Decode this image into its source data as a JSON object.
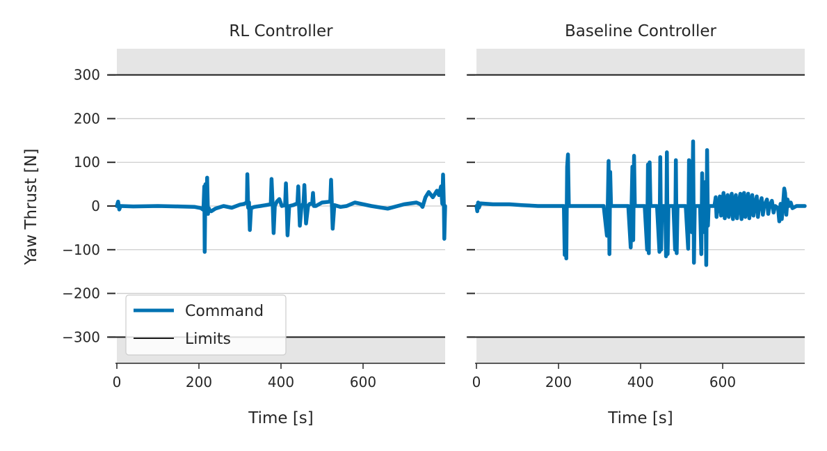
{
  "chart_data": [
    {
      "type": "line",
      "title": "RL Controller",
      "xlabel": "Time [s]",
      "ylabel": "Yaw Thrust [N]",
      "xlim": [
        0,
        800
      ],
      "ylim": [
        -360,
        360
      ],
      "xticks": [
        0,
        200,
        400,
        600
      ],
      "xtick_labels": [
        "0",
        "200",
        "400",
        "600"
      ],
      "yticks": [
        300,
        200,
        100,
        0,
        -100,
        -200,
        -300
      ],
      "ytick_labels": [
        "300",
        "200",
        "100",
        "0",
        "−100",
        "−200",
        "−300"
      ],
      "grid": true,
      "limits": [
        300,
        -300
      ],
      "legend": {
        "position": "lower-left",
        "entries": [
          "Command",
          "Limits"
        ]
      },
      "series": [
        {
          "name": "Command",
          "color": "#0072B2",
          "points": [
            [
              0,
              0
            ],
            [
              3,
              10
            ],
            [
              6,
              -8
            ],
            [
              9,
              0
            ],
            [
              40,
              -1
            ],
            [
              100,
              0
            ],
            [
              150,
              -1
            ],
            [
              190,
              -2
            ],
            [
              205,
              -5
            ],
            [
              211,
              -9
            ],
            [
              213,
              45
            ],
            [
              214,
              -105
            ],
            [
              216,
              50
            ],
            [
              218,
              -8
            ],
            [
              220,
              65
            ],
            [
              222,
              -18
            ],
            [
              224,
              -5
            ],
            [
              226,
              -10
            ],
            [
              230,
              -12
            ],
            [
              240,
              -6
            ],
            [
              260,
              0
            ],
            [
              280,
              -4
            ],
            [
              300,
              3
            ],
            [
              310,
              5
            ],
            [
              317,
              8
            ],
            [
              318,
              73
            ],
            [
              320,
              -4
            ],
            [
              322,
              8
            ],
            [
              324,
              -55
            ],
            [
              327,
              -5
            ],
            [
              335,
              -2
            ],
            [
              350,
              0
            ],
            [
              375,
              4
            ],
            [
              377,
              62
            ],
            [
              380,
              -3
            ],
            [
              382,
              -62
            ],
            [
              385,
              0
            ],
            [
              390,
              10
            ],
            [
              396,
              16
            ],
            [
              402,
              0
            ],
            [
              410,
              2
            ],
            [
              412,
              52
            ],
            [
              414,
              -4
            ],
            [
              416,
              -67
            ],
            [
              420,
              0
            ],
            [
              430,
              2
            ],
            [
              440,
              6
            ],
            [
              442,
              45
            ],
            [
              444,
              0
            ],
            [
              446,
              -45
            ],
            [
              450,
              0
            ],
            [
              455,
              6
            ],
            [
              457,
              48
            ],
            [
              459,
              0
            ],
            [
              461,
              -40
            ],
            [
              466,
              0
            ],
            [
              470,
              5
            ],
            [
              476,
              5
            ],
            [
              478,
              30
            ],
            [
              480,
              0
            ],
            [
              485,
              0
            ],
            [
              500,
              8
            ],
            [
              520,
              10
            ],
            [
              522,
              60
            ],
            [
              524,
              0
            ],
            [
              526,
              -52
            ],
            [
              530,
              2
            ],
            [
              545,
              -2
            ],
            [
              560,
              0
            ],
            [
              580,
              8
            ],
            [
              600,
              4
            ],
            [
              620,
              0
            ],
            [
              660,
              -6
            ],
            [
              700,
              4
            ],
            [
              730,
              8
            ],
            [
              740,
              4
            ],
            [
              745,
              -2
            ],
            [
              752,
              20
            ],
            [
              760,
              32
            ],
            [
              770,
              20
            ],
            [
              780,
              35
            ],
            [
              785,
              25
            ],
            [
              790,
              45
            ],
            [
              793,
              5
            ],
            [
              795,
              72
            ],
            [
              797,
              0
            ],
            [
              798,
              -75
            ],
            [
              800,
              0
            ]
          ]
        }
      ]
    },
    {
      "type": "line",
      "title": "Baseline Controller",
      "xlabel": "Time [s]",
      "ylabel": "",
      "xlim": [
        0,
        800
      ],
      "ylim": [
        -360,
        360
      ],
      "xticks": [
        0,
        200,
        400,
        600
      ],
      "xtick_labels": [
        "0",
        "200",
        "400",
        "600"
      ],
      "yticks": [
        300,
        200,
        100,
        0,
        -100,
        -200,
        -300
      ],
      "grid": true,
      "limits": [
        300,
        -300
      ],
      "series": [
        {
          "name": "Command",
          "color": "#0072B2",
          "points": [
            [
              0,
              0
            ],
            [
              2,
              -12
            ],
            [
              4,
              8
            ],
            [
              6,
              -4
            ],
            [
              10,
              6
            ],
            [
              40,
              4
            ],
            [
              80,
              4
            ],
            [
              110,
              2
            ],
            [
              150,
              0
            ],
            [
              205,
              0
            ],
            [
              213,
              0
            ],
            [
              215,
              -112
            ],
            [
              217,
              0
            ],
            [
              219,
              -120
            ],
            [
              221,
              90
            ],
            [
              223,
              118
            ],
            [
              225,
              0
            ],
            [
              230,
              0
            ],
            [
              310,
              0
            ],
            [
              318,
              -68
            ],
            [
              320,
              0
            ],
            [
              322,
              103
            ],
            [
              324,
              -110
            ],
            [
              326,
              78
            ],
            [
              328,
              0
            ],
            [
              370,
              0
            ],
            [
              376,
              -95
            ],
            [
              378,
              0
            ],
            [
              380,
              90
            ],
            [
              382,
              -78
            ],
            [
              384,
              115
            ],
            [
              386,
              0
            ],
            [
              410,
              0
            ],
            [
              416,
              -100
            ],
            [
              418,
              95
            ],
            [
              420,
              -108
            ],
            [
              422,
              100
            ],
            [
              424,
              0
            ],
            [
              440,
              0
            ],
            [
              446,
              -105
            ],
            [
              448,
              112
            ],
            [
              450,
              -100
            ],
            [
              452,
              0
            ],
            [
              460,
              0
            ],
            [
              462,
              -115
            ],
            [
              464,
              123
            ],
            [
              466,
              -110
            ],
            [
              468,
              0
            ],
            [
              480,
              0
            ],
            [
              484,
              -100
            ],
            [
              486,
              105
            ],
            [
              488,
              -108
            ],
            [
              490,
              0
            ],
            [
              500,
              0
            ],
            [
              510,
              0
            ],
            [
              516,
              -98
            ],
            [
              518,
              105
            ],
            [
              520,
              -40
            ],
            [
              522,
              0
            ],
            [
              525,
              -60
            ],
            [
              528,
              148
            ],
            [
              530,
              -130
            ],
            [
              532,
              0
            ],
            [
              535,
              0
            ],
            [
              545,
              0
            ],
            [
              548,
              -110
            ],
            [
              550,
              75
            ],
            [
              552,
              -60
            ],
            [
              554,
              0
            ],
            [
              556,
              0
            ],
            [
              558,
              55
            ],
            [
              560,
              -135
            ],
            [
              562,
              128
            ],
            [
              564,
              -45
            ],
            [
              566,
              0
            ],
            [
              580,
              0
            ],
            [
              583,
              20
            ],
            [
              585,
              -25
            ],
            [
              587,
              0
            ],
            [
              590,
              -12
            ],
            [
              593,
              22
            ],
            [
              596,
              -22
            ],
            [
              599,
              0
            ],
            [
              602,
              30
            ],
            [
              605,
              -28
            ],
            [
              608,
              0
            ],
            [
              612,
              25
            ],
            [
              615,
              -25
            ],
            [
              618,
              0
            ],
            [
              622,
              28
            ],
            [
              625,
              -30
            ],
            [
              628,
              0
            ],
            [
              632,
              25
            ],
            [
              635,
              -28
            ],
            [
              638,
              0
            ],
            [
              643,
              28
            ],
            [
              646,
              -30
            ],
            [
              649,
              0
            ],
            [
              652,
              30
            ],
            [
              655,
              -25
            ],
            [
              658,
              0
            ],
            [
              662,
              28
            ],
            [
              665,
              -28
            ],
            [
              668,
              0
            ],
            [
              672,
              25
            ],
            [
              675,
              -22
            ],
            [
              678,
              0
            ],
            [
              683,
              22
            ],
            [
              686,
              -25
            ],
            [
              689,
              0
            ],
            [
              695,
              18
            ],
            [
              698,
              -20
            ],
            [
              701,
              0
            ],
            [
              708,
              15
            ],
            [
              711,
              -18
            ],
            [
              714,
              0
            ],
            [
              720,
              12
            ],
            [
              724,
              -15
            ],
            [
              728,
              0
            ],
            [
              735,
              -5
            ],
            [
              738,
              -35
            ],
            [
              741,
              5
            ],
            [
              744,
              -30
            ],
            [
              747,
              0
            ],
            [
              750,
              40
            ],
            [
              752,
              30
            ],
            [
              755,
              -20
            ],
            [
              758,
              15
            ],
            [
              762,
              0
            ],
            [
              766,
              8
            ],
            [
              770,
              -5
            ],
            [
              780,
              0
            ],
            [
              800,
              0
            ]
          ]
        }
      ]
    }
  ]
}
